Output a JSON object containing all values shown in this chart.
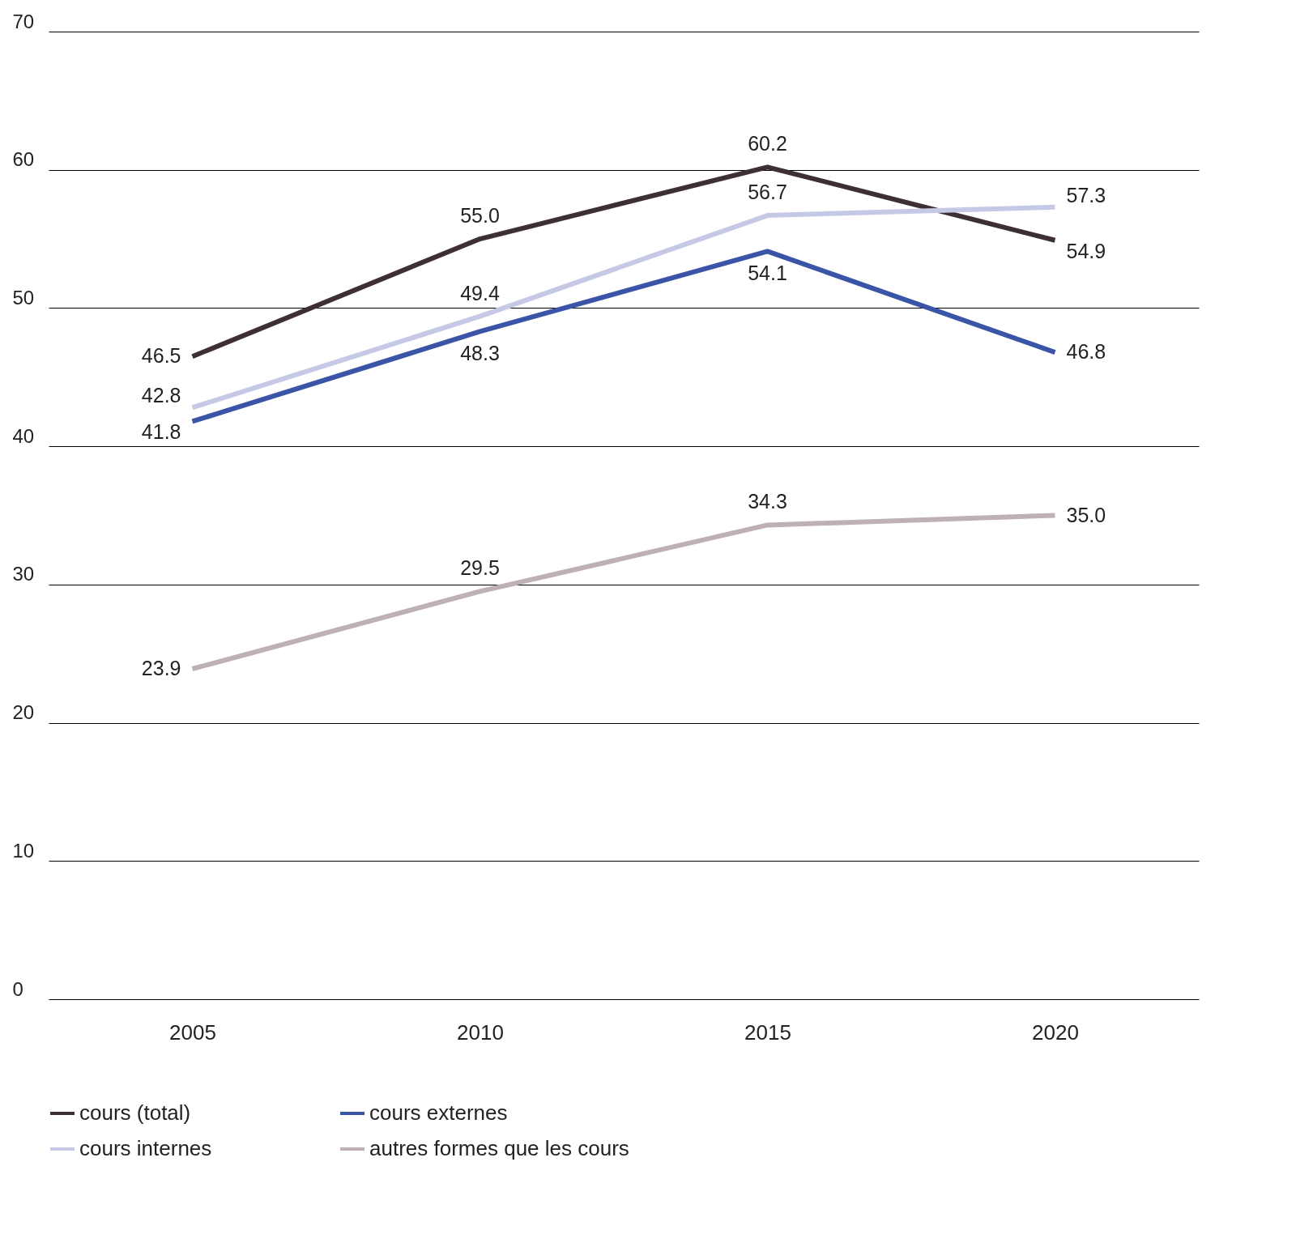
{
  "chart_data": {
    "type": "line",
    "categories": [
      "2005",
      "2010",
      "2015",
      "2020"
    ],
    "series": [
      {
        "name": "cours (total)",
        "color": "#3d2f33",
        "values": [
          46.5,
          55.0,
          60.2,
          54.9
        ],
        "value_labels": [
          "46.5",
          "55.0",
          "60.2",
          "54.9"
        ]
      },
      {
        "name": "cours externes",
        "color": "#3a55a8",
        "values": [
          41.8,
          48.3,
          54.1,
          46.8
        ],
        "value_labels": [
          "41.8",
          "48.3",
          "54.1",
          "46.8"
        ]
      },
      {
        "name": "cours internes",
        "color": "#c5c9e6",
        "values": [
          42.8,
          49.4,
          56.7,
          57.3
        ],
        "value_labels": [
          "42.8",
          "49.4",
          "56.7",
          "57.3"
        ]
      },
      {
        "name": "autres formes que les cours",
        "color": "#bfb0b3",
        "values": [
          23.9,
          29.5,
          34.3,
          35.0
        ],
        "value_labels": [
          "23.9",
          "29.5",
          "34.3",
          "35.0"
        ]
      }
    ],
    "ylim": [
      0,
      70
    ],
    "yticks": [
      0,
      10,
      20,
      30,
      40,
      50,
      60,
      70
    ],
    "grid": "y",
    "legend": "bottom",
    "line_style": "solid"
  }
}
